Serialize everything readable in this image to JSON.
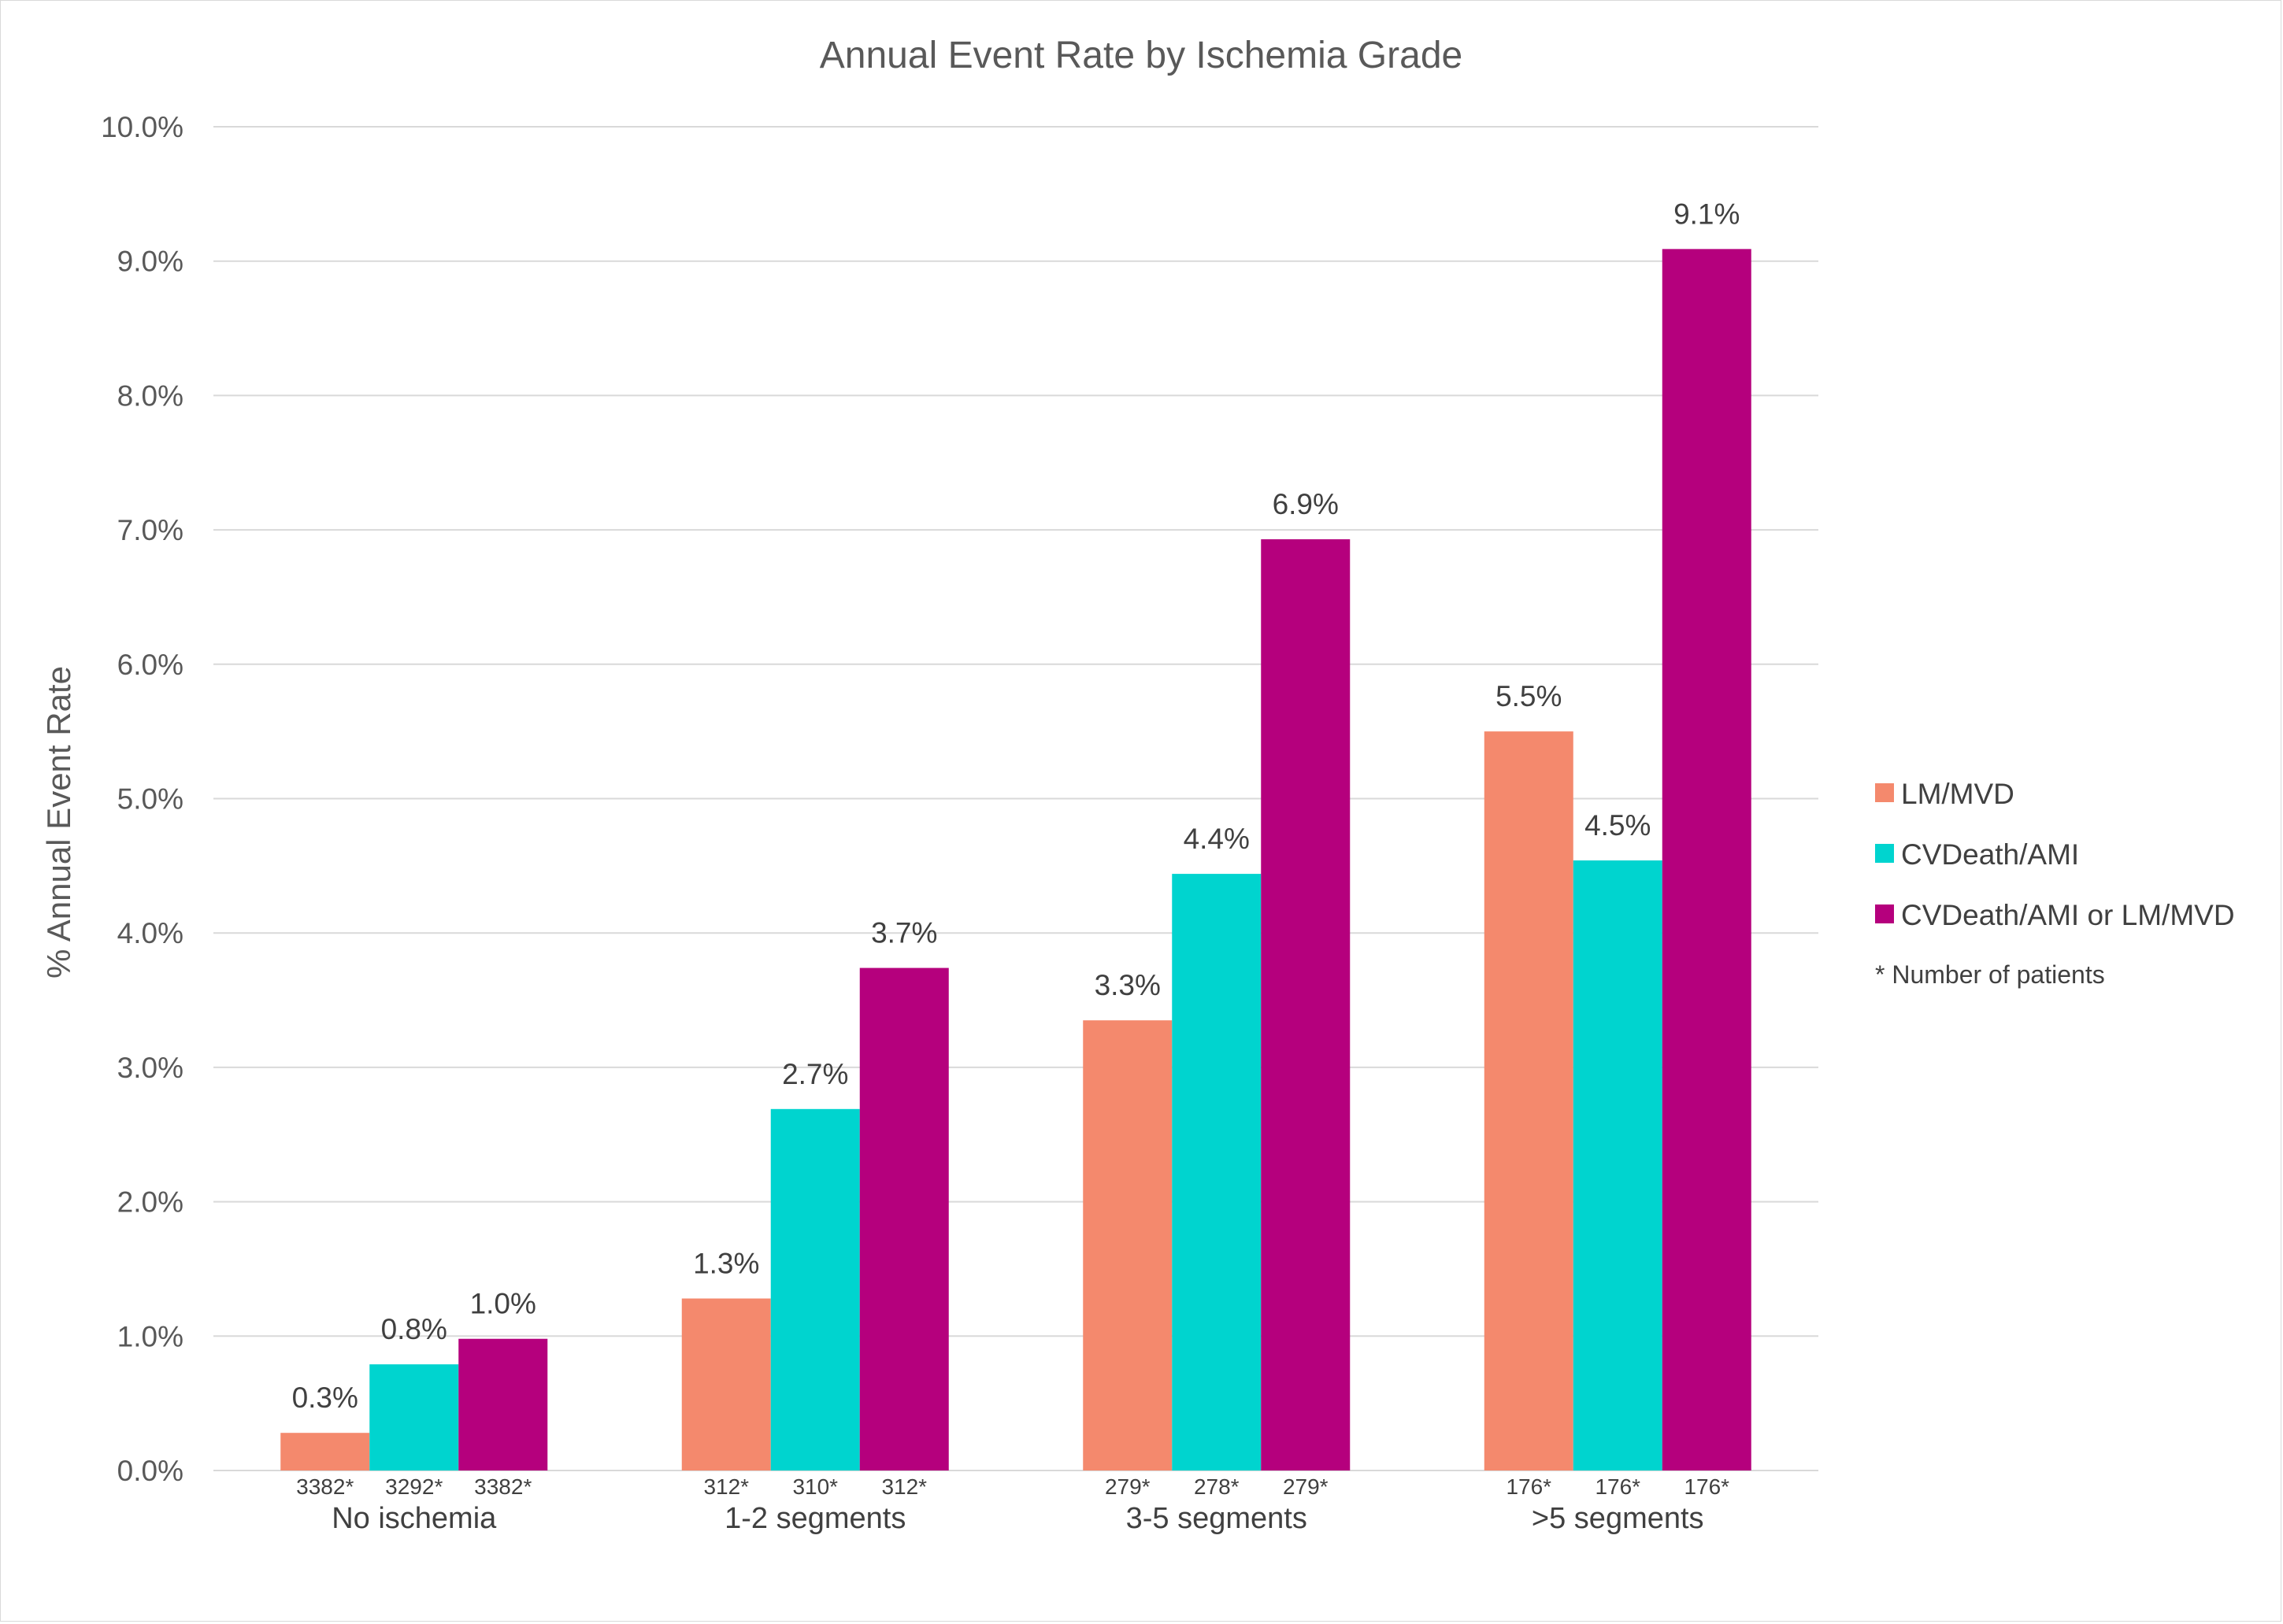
{
  "chart_data": {
    "type": "bar",
    "title": "Annual Event Rate by Ischemia Grade",
    "ylabel": "% Annual Event Rate",
    "xlabel": "",
    "ylim": [
      0,
      10
    ],
    "yticks": [
      "0.0%",
      "1.0%",
      "2.0%",
      "3.0%",
      "4.0%",
      "5.0%",
      "6.0%",
      "7.0%",
      "8.0%",
      "9.0%",
      "10.0%"
    ],
    "grid": true,
    "legend_position": "right",
    "categories": [
      "No ischemia",
      "1-2 segments",
      "3-5 segments",
      ">5 segments"
    ],
    "series": [
      {
        "name": "LM/MVD",
        "color": "#F4896D",
        "values": [
          0.28,
          1.28,
          3.35,
          5.5
        ],
        "labels": [
          "0.3%",
          "1.3%",
          "3.3%",
          "5.5%"
        ],
        "patients": [
          "3382*",
          "312*",
          "279*",
          "176*"
        ]
      },
      {
        "name": "CVDeath/AMI",
        "color": "#00D4CF",
        "values": [
          0.79,
          2.69,
          4.44,
          4.54
        ],
        "labels": [
          "0.8%",
          "2.7%",
          "4.4%",
          "4.5%"
        ],
        "patients": [
          "3292*",
          "310*",
          "278*",
          "176*"
        ]
      },
      {
        "name": "CVDeath/AMI or LM/MVD",
        "color": "#B5007D",
        "values": [
          0.98,
          3.74,
          6.93,
          9.09
        ],
        "labels": [
          "1.0%",
          "3.7%",
          "6.9%",
          "9.1%"
        ],
        "patients": [
          "3382*",
          "312*",
          "279*",
          "176*"
        ]
      }
    ],
    "legend_note": "*  Number of patients"
  }
}
